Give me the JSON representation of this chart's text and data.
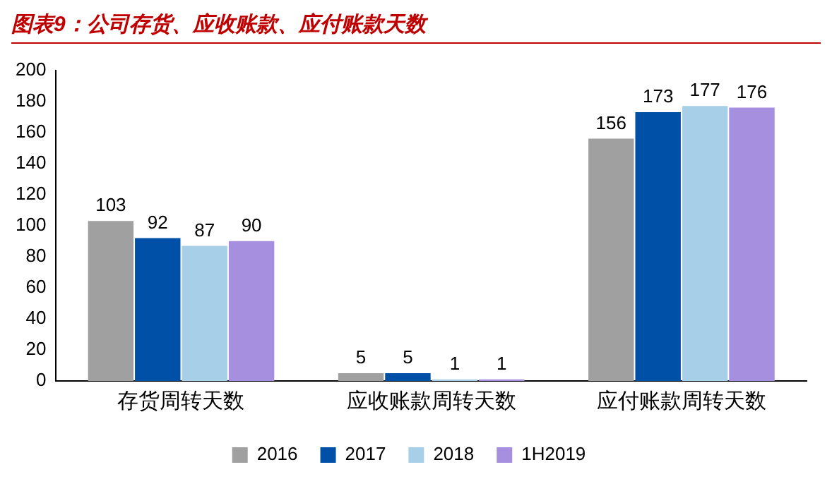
{
  "chart_data": {
    "type": "bar",
    "title": "图表9：公司存货、应收账款、应付账款天数",
    "categories": [
      "存货周转天数",
      "应收账款周转天数",
      "应付账款周转天数"
    ],
    "series": [
      {
        "name": "2016",
        "color": "#a0a0a0",
        "values": [
          103,
          5,
          156
        ]
      },
      {
        "name": "2017",
        "color": "#0050a8",
        "values": [
          92,
          5,
          173
        ]
      },
      {
        "name": "2018",
        "color": "#a8cfe8",
        "values": [
          87,
          1,
          177
        ]
      },
      {
        "name": "1H2019",
        "color": "#a78fe0",
        "values": [
          90,
          1,
          176
        ]
      }
    ],
    "ylim": [
      0,
      200
    ],
    "yticks": [
      0,
      20,
      40,
      60,
      80,
      100,
      120,
      140,
      160,
      180,
      200
    ],
    "grid": false,
    "legend": "bottom",
    "data_labels": true
  }
}
